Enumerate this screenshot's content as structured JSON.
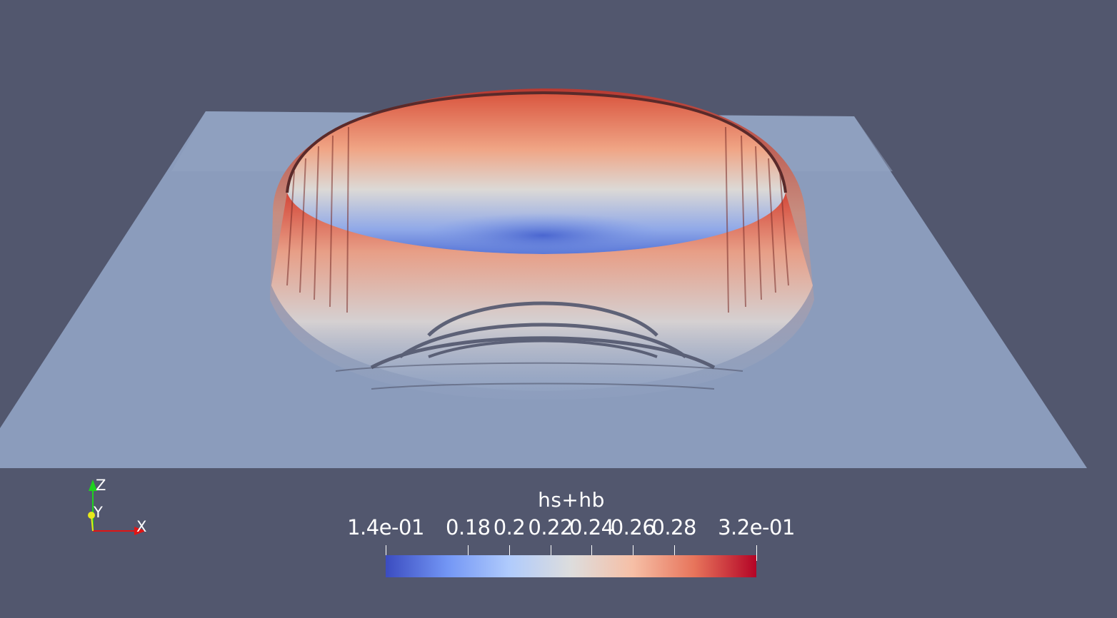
{
  "scene": {
    "background": "#52576e",
    "plane_color": "#8b9cbc",
    "field": "hs+hb"
  },
  "colorbar": {
    "title": "hs+hb",
    "colormap": [
      "#3b4cc0",
      "#7396f5",
      "#b0cbfc",
      "#dddddd",
      "#f6bfa6",
      "#e7745b",
      "#b40426"
    ],
    "min": 0.14,
    "max": 0.32,
    "labels": [
      {
        "text": "1.4e-01",
        "value": 0.14
      },
      {
        "text": "0.18",
        "value": 0.18
      },
      {
        "text": "0.2",
        "value": 0.2
      },
      {
        "text": "0.22",
        "value": 0.22
      },
      {
        "text": "0.24",
        "value": 0.24
      },
      {
        "text": "0.26",
        "value": 0.26
      },
      {
        "text": "0.28",
        "value": 0.28
      },
      {
        "text": "3.2e-01",
        "value": 0.32
      }
    ]
  },
  "axes": {
    "z_label": "Z",
    "y_label": "Y",
    "x_label": "X",
    "z_color": "#1fd21f",
    "y_color": "#e8e81a",
    "x_color": "#e01515"
  }
}
